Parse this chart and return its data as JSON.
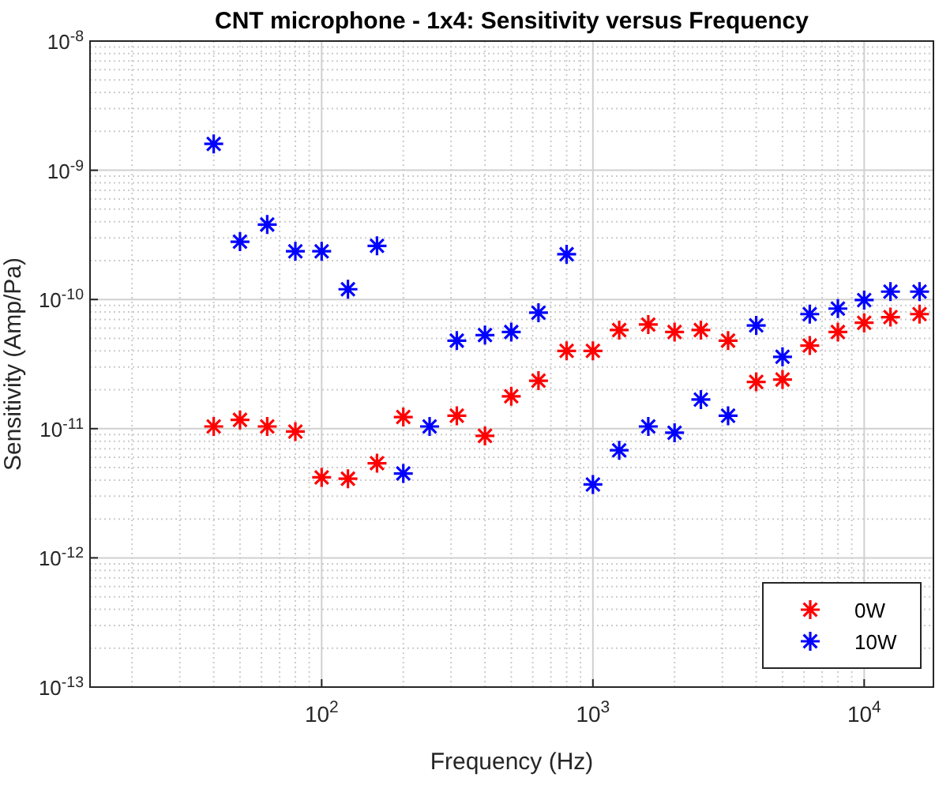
{
  "chart_data": {
    "type": "scatter",
    "title": "CNT microphone - 1x4: Sensitivity versus Frequency",
    "xlabel": "Frequency (Hz)",
    "ylabel": "Sensitivity (Amp/Pa)",
    "log": "xy",
    "grid": true,
    "legend": "bottom right",
    "marker": "cross",
    "x": [
      40,
      50,
      63,
      80,
      100,
      125,
      160,
      200,
      250,
      315,
      400,
      500,
      630,
      800,
      1000,
      1250,
      1600,
      2000,
      2500,
      3150,
      4000,
      5000,
      6300,
      8000,
      10000,
      12500,
      16000
    ],
    "xlim": [
      14,
      18000
    ],
    "xticks": [
      {
        "value": 100,
        "label": "10$^{2}$"
      },
      {
        "value": 1000,
        "label": "10$^{3}$"
      },
      {
        "value": 10000,
        "label": "10$^{4}$"
      }
    ],
    "ylim": [
      1e-13,
      1e-08
    ],
    "yticks": [
      {
        "value": 1e-13,
        "label": "10$^{-13}$"
      },
      {
        "value": 1e-12,
        "label": "10$^{-12}$"
      },
      {
        "value": 1e-11,
        "label": "10$^{-11}$"
      },
      {
        "value": 1e-10,
        "label": "10$^{-10}$"
      },
      {
        "value": 1e-09,
        "label": "10$^{-9}$"
      },
      {
        "value": 1e-08,
        "label": "10$^{-8}$"
      }
    ],
    "series": [
      {
        "name": "0W",
        "color": "#ff0000",
        "x": [
          40,
          50,
          63,
          80,
          100,
          125,
          160,
          200,
          315,
          400,
          500,
          630,
          800,
          1000,
          1250,
          1600,
          2000,
          2500,
          3150,
          4000,
          5000,
          6300,
          8000,
          10000,
          12500,
          16000
        ],
        "values": [
          1.04e-11,
          1.17e-11,
          1.04e-11,
          9.5e-12,
          4.2e-12,
          4.1e-12,
          5.4e-12,
          1.23e-11,
          1.26e-11,
          8.8e-12,
          1.78e-11,
          2.35e-11,
          4e-11,
          4e-11,
          5.8e-11,
          6.4e-11,
          5.6e-11,
          5.8e-11,
          4.8e-11,
          2.3e-11,
          2.4e-11,
          4.4e-11,
          5.6e-11,
          6.6e-11,
          7.3e-11,
          7.7e-11
        ]
      },
      {
        "name": "10W",
        "color": "#0000ff",
        "values": [
          1.6e-09,
          2.8e-10,
          3.8e-10,
          2.36e-10,
          2.36e-10,
          1.2e-10,
          2.6e-10,
          4.5e-12,
          1.04e-11,
          4.8e-11,
          5.3e-11,
          5.6e-11,
          7.9e-11,
          2.24e-10,
          3.7e-12,
          6.8e-12,
          1.04e-11,
          9.3e-12,
          1.68e-11,
          1.26e-11,
          6.3e-11,
          3.6e-11,
          7.7e-11,
          8.5e-11,
          9.9e-11,
          1.15e-10,
          1.15e-10
        ]
      }
    ]
  }
}
